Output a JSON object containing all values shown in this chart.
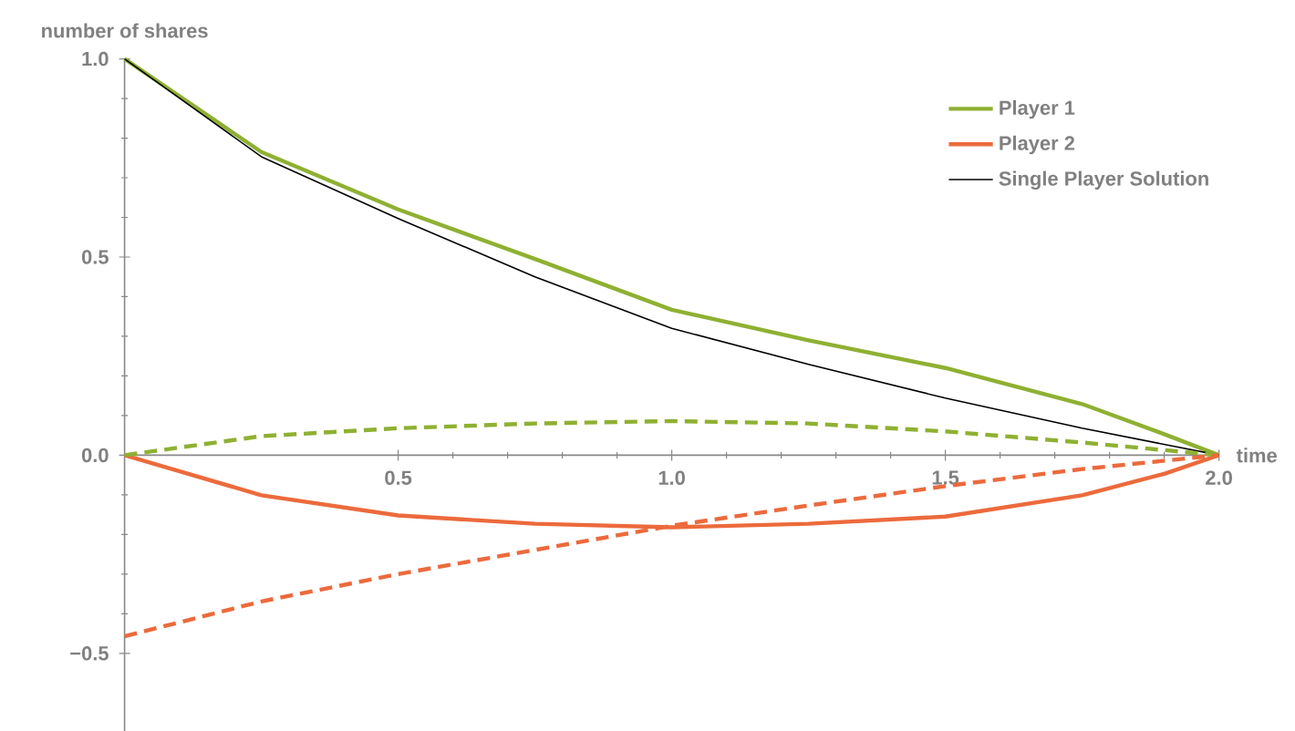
{
  "chart_data": {
    "type": "line",
    "xlabel": "time",
    "ylabel": "number of shares",
    "xlim": [
      0,
      2
    ],
    "ylim": [
      -0.7,
      1.0
    ],
    "xticks": [
      0.5,
      {
        "value": 1,
        "label": "1.0"
      },
      1.5,
      {
        "value": 2,
        "label": "2.0"
      }
    ],
    "yticks": [
      {
        "value": -0.5,
        "label": "−0.5"
      },
      {
        "value": 0,
        "label": "0.0"
      },
      0.5,
      {
        "value": 1,
        "label": "1.0"
      }
    ],
    "legend": "top right",
    "series": [
      {
        "name": "Player 1",
        "color": "#8fb032",
        "line_style": "solid",
        "x": [
          0,
          0.25,
          0.5,
          0.75,
          1,
          1.25,
          1.5,
          1.75,
          1.9,
          2
        ],
        "values": [
          1.0,
          0.765,
          0.62,
          0.495,
          0.367,
          0.29,
          0.22,
          0.129,
          0.053,
          0
        ]
      },
      {
        "name": "Player 2",
        "color": "#ec6a3c",
        "line_style": "solid",
        "x": [
          0,
          0.25,
          0.5,
          0.75,
          1,
          1.25,
          1.5,
          1.75,
          1.9,
          2
        ],
        "values": [
          0,
          -0.101,
          -0.152,
          -0.173,
          -0.182,
          -0.173,
          -0.155,
          -0.101,
          -0.047,
          0
        ]
      },
      {
        "name": "Single Player Solution",
        "color": "#000000",
        "line_style": "solid",
        "x": [
          0,
          0.25,
          0.5,
          0.75,
          1,
          1.25,
          1.5,
          1.75,
          2
        ],
        "values": [
          1.0,
          0.753,
          0.597,
          0.45,
          0.32,
          0.229,
          0.144,
          0.068,
          0
        ]
      },
      {
        "color": "#8fb032",
        "line_style": "dashed",
        "x": [
          0,
          0.25,
          0.5,
          0.75,
          1,
          1.25,
          1.5,
          1.75,
          2
        ],
        "values": [
          0,
          0.048,
          0.068,
          0.08,
          0.086,
          0.08,
          0.06,
          0.032,
          0
        ]
      },
      {
        "color": "#ec6a3c",
        "line_style": "dashed",
        "x": [
          0,
          0.25,
          0.5,
          0.75,
          1,
          1.25,
          1.5,
          1.75,
          2
        ],
        "values": [
          -0.457,
          -0.369,
          -0.3,
          -0.239,
          -0.178,
          -0.127,
          -0.078,
          -0.035,
          0
        ]
      }
    ]
  }
}
